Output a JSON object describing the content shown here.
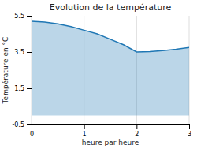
{
  "chart_data": {
    "type": "area",
    "title": "Evolution de la température",
    "xlabel": "heure par heure",
    "ylabel": "Température en °C",
    "x": [
      0,
      0.25,
      0.5,
      0.75,
      1.0,
      1.25,
      1.5,
      1.75,
      2.0,
      2.25,
      2.5,
      2.75,
      3.0
    ],
    "values": [
      5.2,
      5.15,
      5.05,
      4.9,
      4.7,
      4.5,
      4.2,
      3.9,
      3.5,
      3.52,
      3.58,
      3.65,
      3.75
    ],
    "xlim": [
      0,
      3
    ],
    "ylim": [
      -0.5,
      5.5
    ],
    "xticks": [
      0,
      1,
      2,
      3
    ],
    "yticks": [
      -0.5,
      1.5,
      3.5,
      5.5
    ],
    "grid": "x"
  }
}
